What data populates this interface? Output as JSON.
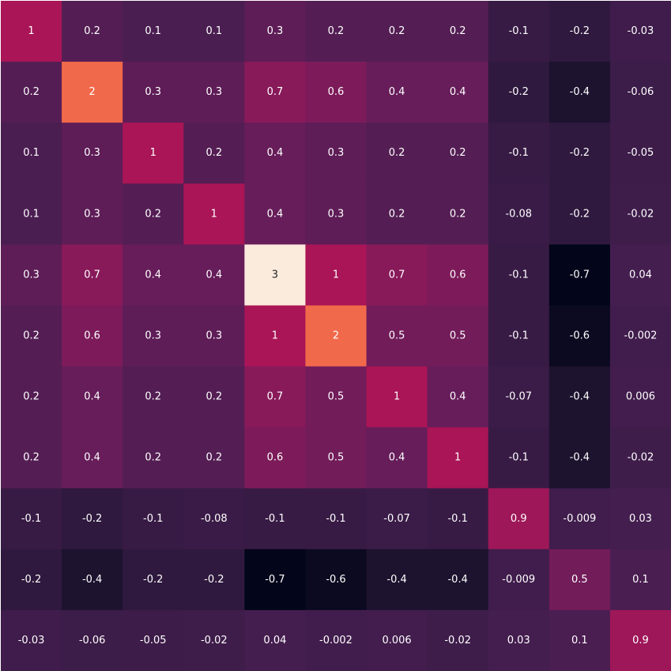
{
  "chart_data": {
    "type": "heatmap",
    "colormap": "rocket",
    "vmin": -0.7,
    "vmax": 3,
    "values": [
      [
        1,
        0.2,
        0.1,
        0.1,
        0.3,
        0.2,
        0.2,
        0.2,
        -0.1,
        -0.2,
        -0.03
      ],
      [
        0.2,
        2,
        0.3,
        0.3,
        0.7,
        0.6,
        0.4,
        0.4,
        -0.2,
        -0.4,
        -0.06
      ],
      [
        0.1,
        0.3,
        1,
        0.2,
        0.4,
        0.3,
        0.2,
        0.2,
        -0.1,
        -0.2,
        -0.05
      ],
      [
        0.1,
        0.3,
        0.2,
        1,
        0.4,
        0.3,
        0.2,
        0.2,
        -0.08,
        -0.2,
        -0.02
      ],
      [
        0.3,
        0.7,
        0.4,
        0.4,
        3,
        1,
        0.7,
        0.6,
        -0.1,
        -0.7,
        0.04
      ],
      [
        0.2,
        0.6,
        0.3,
        0.3,
        1,
        2,
        0.5,
        0.5,
        -0.1,
        -0.6,
        -0.002
      ],
      [
        0.2,
        0.4,
        0.2,
        0.2,
        0.7,
        0.5,
        1,
        0.4,
        -0.07,
        -0.4,
        0.006
      ],
      [
        0.2,
        0.4,
        0.2,
        0.2,
        0.6,
        0.5,
        0.4,
        1,
        -0.1,
        -0.4,
        -0.02
      ],
      [
        -0.1,
        -0.2,
        -0.1,
        -0.08,
        -0.1,
        -0.1,
        -0.07,
        -0.1,
        0.9,
        -0.009,
        0.03
      ],
      [
        -0.2,
        -0.4,
        -0.2,
        -0.2,
        -0.7,
        -0.6,
        -0.4,
        -0.4,
        -0.009,
        0.5,
        0.1
      ],
      [
        -0.03,
        -0.06,
        -0.05,
        -0.02,
        0.04,
        -0.002,
        0.006,
        -0.02,
        0.03,
        0.1,
        0.9
      ]
    ],
    "labels": [
      [
        "1",
        "0.2",
        "0.1",
        "0.1",
        "0.3",
        "0.2",
        "0.2",
        "0.2",
        "-0.1",
        "-0.2",
        "-0.03"
      ],
      [
        "0.2",
        "2",
        "0.3",
        "0.3",
        "0.7",
        "0.6",
        "0.4",
        "0.4",
        "-0.2",
        "-0.4",
        "-0.06"
      ],
      [
        "0.1",
        "0.3",
        "1",
        "0.2",
        "0.4",
        "0.3",
        "0.2",
        "0.2",
        "-0.1",
        "-0.2",
        "-0.05"
      ],
      [
        "0.1",
        "0.3",
        "0.2",
        "1",
        "0.4",
        "0.3",
        "0.2",
        "0.2",
        "-0.08",
        "-0.2",
        "-0.02"
      ],
      [
        "0.3",
        "0.7",
        "0.4",
        "0.4",
        "3",
        "1",
        "0.7",
        "0.6",
        "-0.1",
        "-0.7",
        "0.04"
      ],
      [
        "0.2",
        "0.6",
        "0.3",
        "0.3",
        "1",
        "2",
        "0.5",
        "0.5",
        "-0.1",
        "-0.6",
        "-0.002"
      ],
      [
        "0.2",
        "0.4",
        "0.2",
        "0.2",
        "0.7",
        "0.5",
        "1",
        "0.4",
        "-0.07",
        "-0.4",
        "0.006"
      ],
      [
        "0.2",
        "0.4",
        "0.2",
        "0.2",
        "0.6",
        "0.5",
        "0.4",
        "1",
        "-0.1",
        "-0.4",
        "-0.02"
      ],
      [
        "-0.1",
        "-0.2",
        "-0.1",
        "-0.08",
        "-0.1",
        "-0.1",
        "-0.07",
        "-0.1",
        "0.9",
        "-0.009",
        "0.03"
      ],
      [
        "-0.2",
        "-0.4",
        "-0.2",
        "-0.2",
        "-0.7",
        "-0.6",
        "-0.4",
        "-0.4",
        "-0.009",
        "0.5",
        "0.1"
      ],
      [
        "-0.03",
        "-0.06",
        "-0.05",
        "-0.02",
        "0.04",
        "-0.002",
        "0.006",
        "-0.02",
        "0.03",
        "0.1",
        "0.9"
      ]
    ],
    "title": "",
    "xlabel": "",
    "ylabel": "",
    "grid": false,
    "legend": "none"
  }
}
